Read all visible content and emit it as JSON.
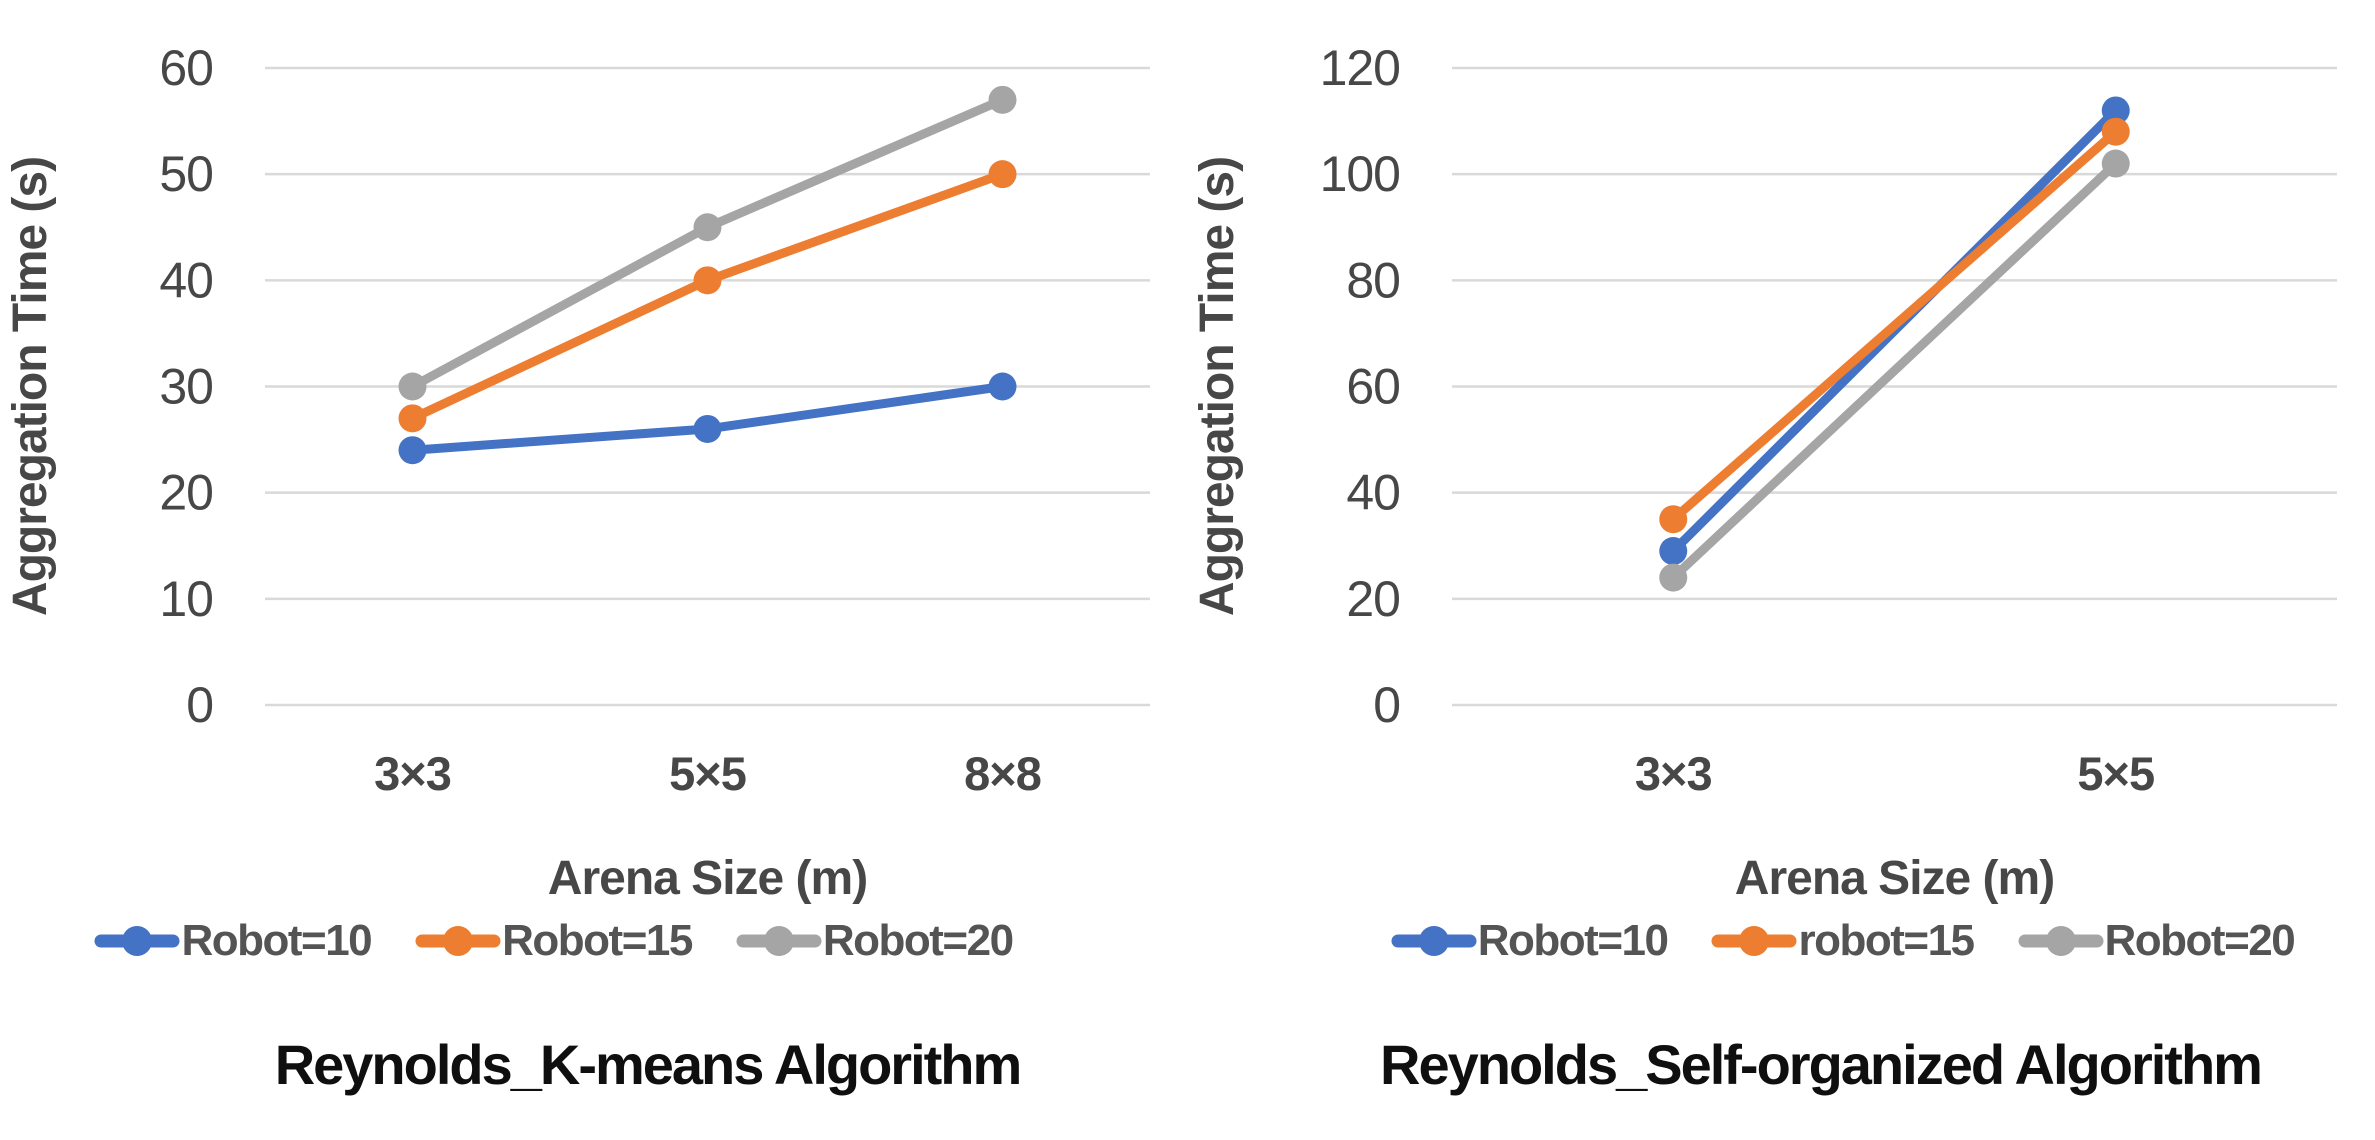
{
  "colors": {
    "series_blue": "#4472C4",
    "series_orange": "#ED7D31",
    "series_gray": "#A5A5A5",
    "grid": "#D9D9D9",
    "axis_text": "#474747",
    "legend_text": "#545454",
    "title_text": "#0F0F0F",
    "background": "#FFFFFF"
  },
  "chart_data": [
    {
      "type": "line",
      "title": "Reynolds_K-means Algorithm",
      "xlabel": "Arena Size (m)",
      "ylabel": "Aggregation Time (s)",
      "categories": [
        "3×3",
        "5×5",
        "8×8"
      ],
      "ylim": [
        0,
        60
      ],
      "yticks": [
        0,
        10,
        20,
        30,
        40,
        50,
        60
      ],
      "grid": true,
      "legend_position": "bottom",
      "marker": "circle",
      "series": [
        {
          "name": "Robot=10",
          "color": "#4472C4",
          "values": [
            24,
            26,
            30
          ]
        },
        {
          "name": "Robot=15",
          "color": "#ED7D31",
          "values": [
            27,
            40,
            50
          ]
        },
        {
          "name": "Robot=20",
          "color": "#A5A5A5",
          "values": [
            30,
            45,
            57
          ]
        }
      ]
    },
    {
      "type": "line",
      "title": "Reynolds_Self-organized Algorithm",
      "xlabel": "Arena Size (m)",
      "ylabel": "Aggregation Time (s)",
      "categories": [
        "3×3",
        "5×5"
      ],
      "ylim": [
        0,
        120
      ],
      "yticks": [
        0,
        20,
        40,
        60,
        80,
        100,
        120
      ],
      "grid": true,
      "legend_position": "bottom",
      "marker": "circle",
      "series": [
        {
          "name": "Robot=10",
          "color": "#4472C4",
          "values": [
            29,
            112
          ]
        },
        {
          "name": "robot=15",
          "color": "#ED7D31",
          "values": [
            35,
            108
          ]
        },
        {
          "name": "Robot=20",
          "color": "#A5A5A5",
          "values": [
            24,
            102
          ]
        }
      ]
    }
  ]
}
